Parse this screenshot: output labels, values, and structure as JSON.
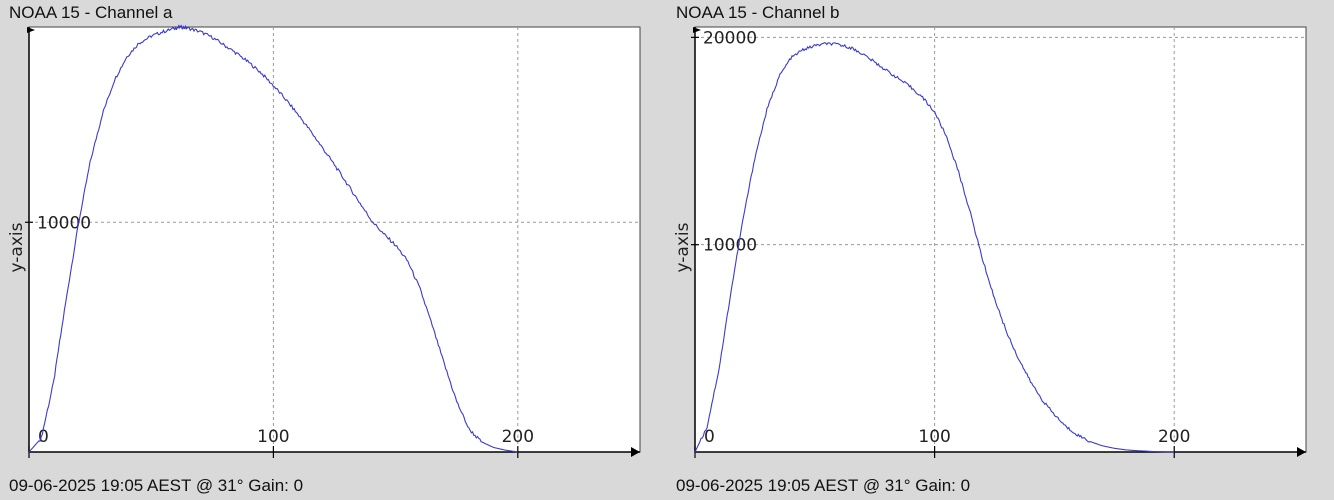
{
  "chart_data": [
    {
      "type": "line",
      "title": "NOAA 15 - Channel a",
      "footer": "09-06-2025 19:05 AEST @ 31° Gain: 0",
      "ylabel": "y-axis",
      "xlabel": "",
      "xlim": [
        0,
        250
      ],
      "ylim": [
        0,
        18500
      ],
      "xticks": [
        0,
        100,
        200
      ],
      "yticks": [
        10000
      ],
      "xtick_labels": [
        "0",
        "100",
        "200"
      ],
      "ytick_labels": [
        "10000"
      ],
      "grid": true,
      "colors": {
        "line": "#3b3bcc",
        "grid": "#9a9a9a",
        "axis": "#000000",
        "plot_bg": "#ffffff",
        "page_bg": "#d9d9d9"
      },
      "series": [
        {
          "x": [
            0,
            5,
            10,
            15,
            20,
            25,
            30,
            35,
            40,
            45,
            50,
            55,
            60,
            62,
            65,
            70,
            75,
            80,
            85,
            90,
            95,
            100,
            105,
            110,
            115,
            120,
            125,
            130,
            135,
            140,
            145,
            150,
            155,
            160,
            165,
            170,
            175,
            180,
            185,
            190,
            195,
            200
          ],
          "y": [
            0,
            600,
            3000,
            6500,
            9800,
            12600,
            14700,
            16200,
            17200,
            17800,
            18100,
            18300,
            18450,
            18500,
            18450,
            18300,
            18050,
            17700,
            17350,
            16950,
            16500,
            15950,
            15350,
            14700,
            14000,
            13250,
            12500,
            11700,
            10900,
            10100,
            9500,
            9000,
            8300,
            7100,
            5500,
            3800,
            2200,
            1000,
            450,
            200,
            80,
            0
          ]
        }
      ]
    },
    {
      "type": "line",
      "title": "NOAA 15 - Channel b",
      "footer": "09-06-2025 19:05 AEST @ 31° Gain: 0",
      "ylabel": "y-axis",
      "xlabel": "",
      "xlim": [
        0,
        255
      ],
      "ylim": [
        0,
        20500
      ],
      "xticks": [
        0,
        100,
        200
      ],
      "yticks": [
        10000,
        20000
      ],
      "xtick_labels": [
        "0",
        "100",
        "200"
      ],
      "ytick_labels": [
        "10000",
        "20000"
      ],
      "grid": true,
      "colors": {
        "line": "#3b3bcc",
        "grid": "#9a9a9a",
        "axis": "#000000",
        "plot_bg": "#ffffff",
        "page_bg": "#d9d9d9"
      },
      "series": [
        {
          "x": [
            0,
            5,
            10,
            15,
            20,
            25,
            30,
            35,
            40,
            45,
            50,
            55,
            60,
            65,
            70,
            75,
            80,
            85,
            90,
            95,
            100,
            105,
            110,
            115,
            120,
            125,
            130,
            135,
            140,
            145,
            150,
            155,
            160,
            165,
            170,
            175,
            180,
            185,
            190,
            195,
            200
          ],
          "y": [
            0,
            1200,
            4000,
            7700,
            11200,
            14200,
            16500,
            18100,
            19000,
            19400,
            19600,
            19700,
            19650,
            19500,
            19200,
            18800,
            18400,
            18000,
            17600,
            17100,
            16400,
            15200,
            13500,
            11500,
            9300,
            7400,
            5800,
            4500,
            3400,
            2500,
            1800,
            1200,
            800,
            500,
            300,
            180,
            100,
            60,
            30,
            10,
            0
          ]
        }
      ]
    }
  ]
}
